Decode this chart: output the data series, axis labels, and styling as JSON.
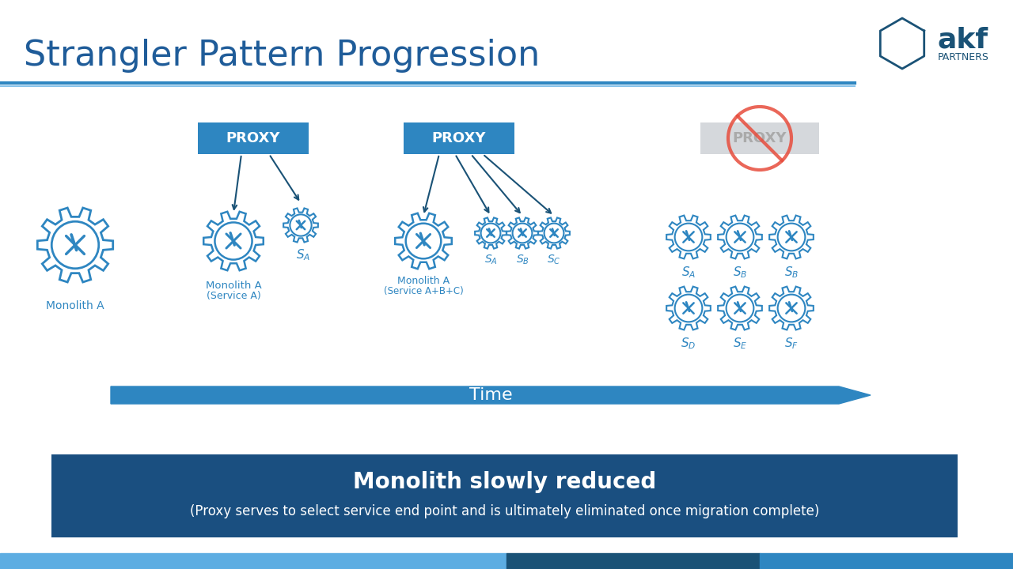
{
  "title": "Strangler Pattern Progression",
  "title_color": "#1F5C99",
  "title_fontsize": 32,
  "bg_color": "#FFFFFF",
  "header_line_color1": "#2E86C1",
  "header_line_color2": "#85C1E9",
  "proxy_box_color": "#2E86C1",
  "proxy_box_text": "PROXY",
  "proxy_box_text_color": "#FFFFFF",
  "proxy_disabled_color": "#D5D8DC",
  "gear_color": "#2E86C1",
  "gear_fill": "#FFFFFF",
  "arrow_color": "#1A5276",
  "time_arrow_color": "#2E86C1",
  "time_label": "Time",
  "time_label_color": "#FFFFFF",
  "bottom_box_color": "#1A4F80",
  "bottom_text1": "Monolith slowly reduced",
  "bottom_text2": "(Proxy serves to select service end point and is ultimately eliminated once migration complete)",
  "bottom_text_color": "#FFFFFF",
  "no_symbol_color": "#E74C3C",
  "stage1_label": "Monolith A",
  "stage2_label1": "Monolith A",
  "stage2_label2": "(Service A)",
  "stage3_label1": "Monolith A",
  "stage3_label2": "(Service A+B+C)",
  "sub_label_color": "#2E86C1",
  "footer_colors": [
    "#5DADE2",
    "#1A5276",
    "#2E86C1"
  ]
}
